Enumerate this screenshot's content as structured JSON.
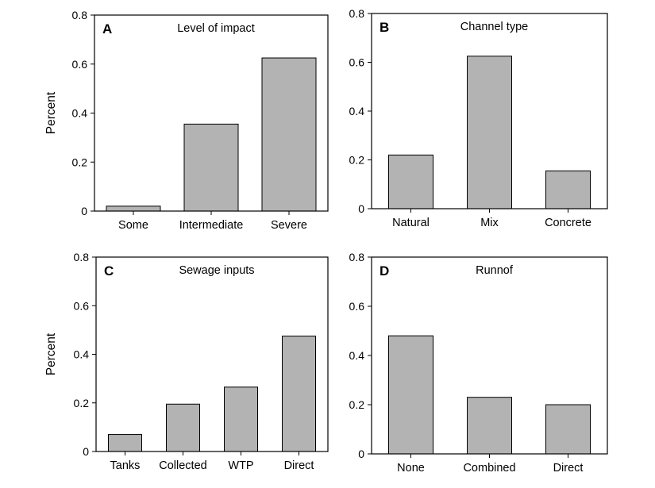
{
  "style": {
    "bar_fill": "#b3b3b3",
    "bar_stroke": "#000000",
    "frame_stroke": "#000000"
  },
  "chart_data": [
    {
      "type": "bar",
      "letter": "A",
      "title": "Level of impact",
      "ylabel": "Percent",
      "categories": [
        "Some",
        "Intermediate",
        "Severe"
      ],
      "values": [
        0.02,
        0.355,
        0.625
      ],
      "ylim": [
        0,
        0.8
      ],
      "yticks": [
        "0",
        "0.2",
        "0.4",
        "0.6",
        "0.8"
      ],
      "grid": false
    },
    {
      "type": "bar",
      "letter": "B",
      "title": "Channel type",
      "ylabel": "",
      "categories": [
        "Natural",
        "Mix",
        "Concrete"
      ],
      "values": [
        0.22,
        0.625,
        0.155
      ],
      "ylim": [
        0,
        0.8
      ],
      "yticks": [
        "0",
        "0.2",
        "0.4",
        "0.6",
        "0.8"
      ],
      "grid": false
    },
    {
      "type": "bar",
      "letter": "C",
      "title": "Sewage inputs",
      "ylabel": "Percent",
      "categories": [
        "Tanks",
        "Collected",
        "WTP",
        "Direct"
      ],
      "values": [
        0.07,
        0.195,
        0.265,
        0.475
      ],
      "ylim": [
        0,
        0.8
      ],
      "yticks": [
        "0",
        "0.2",
        "0.4",
        "0.6",
        "0.8"
      ],
      "grid": false
    },
    {
      "type": "bar",
      "letter": "D",
      "title": "Runnof",
      "ylabel": "",
      "categories": [
        "None",
        "Combined",
        "Direct"
      ],
      "values": [
        0.48,
        0.23,
        0.2
      ],
      "ylim": [
        0,
        0.8
      ],
      "yticks": [
        "0",
        "0.2",
        "0.4",
        "0.6",
        "0.8"
      ],
      "grid": false
    }
  ]
}
